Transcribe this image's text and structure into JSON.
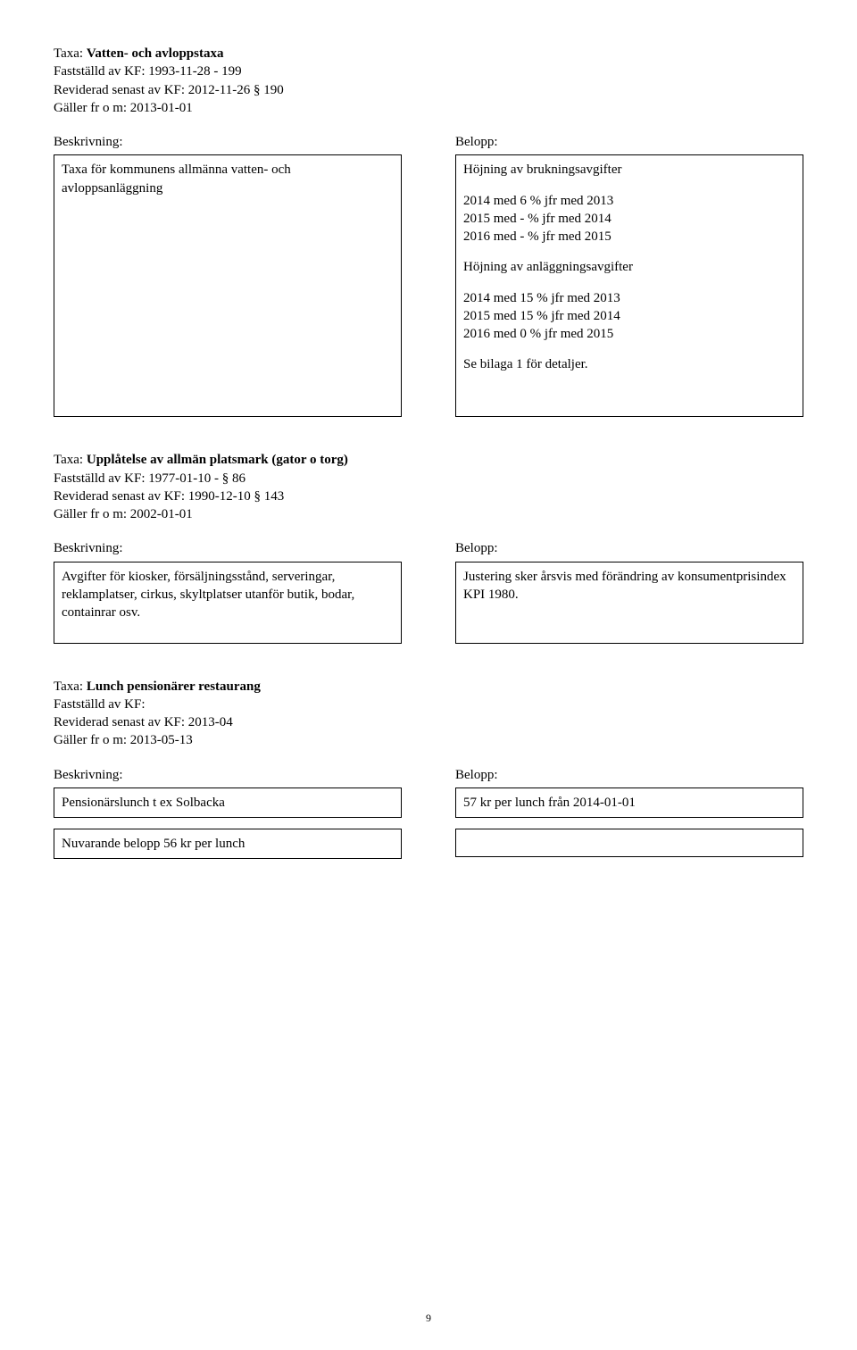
{
  "section1": {
    "title_prefix": "Taxa: ",
    "title_bold": "Vatten- och avloppstaxa",
    "line2": "Fastställd av KF: 1993-11-28  -  199",
    "line3": "Reviderad senast av KF: 2012-11-26 § 190",
    "line4": "Gäller fr o m: 2013-01-01",
    "left_label": "Beskrivning:",
    "right_label": "Belopp:",
    "left_box": "Taxa för kommunens allmänna vatten- och avloppsanläggning",
    "right_p1": "Höjning av brukningsavgifter",
    "right_p2_l1": "2014 med 6 % jfr med 2013",
    "right_p2_l2": "2015 med - % jfr med 2014",
    "right_p2_l3": "2016 med - % jfr med 2015",
    "right_p3": "Höjning av anläggningsavgifter",
    "right_p4_l1": "2014 med 15 % jfr med 2013",
    "right_p4_l2": "2015 med 15 % jfr med 2014",
    "right_p4_l3": "2016 med 0 % jfr med 2015",
    "right_p5": "Se bilaga 1 för detaljer."
  },
  "section2": {
    "title_prefix": "Taxa: ",
    "title_bold": "Upplåtelse av allmän platsmark (gator o torg)",
    "line2": "Fastställd av KF: 1977-01-10  -  § 86",
    "line3": "Reviderad senast av KF: 1990-12-10 § 143",
    "line4": "Gäller fr o m: 2002-01-01",
    "left_label": "Beskrivning:",
    "right_label": "Belopp:",
    "left_box": "Avgifter för kiosker, försäljningsstånd, serveringar, reklamplatser, cirkus, skyltplatser utanför butik, bodar, containrar osv.",
    "right_box": "Justering sker årsvis med förändring av konsumentprisindex KPI 1980."
  },
  "section3": {
    "title_prefix": "Taxa: ",
    "title_bold": "Lunch pensionärer restaurang",
    "line2": "Fastställd av KF:",
    "line3": "Reviderad senast av KF: 2013-04",
    "line4": "Gäller fr o m: 2013-05-13",
    "left_label": "Beskrivning:",
    "right_label": "Belopp:",
    "left_box1": "Pensionärslunch t ex Solbacka",
    "left_box2": "Nuvarande belopp 56 kr per lunch",
    "right_box1": "57 kr per lunch från 2014-01-01",
    "right_box2": ""
  },
  "page_number": "9"
}
